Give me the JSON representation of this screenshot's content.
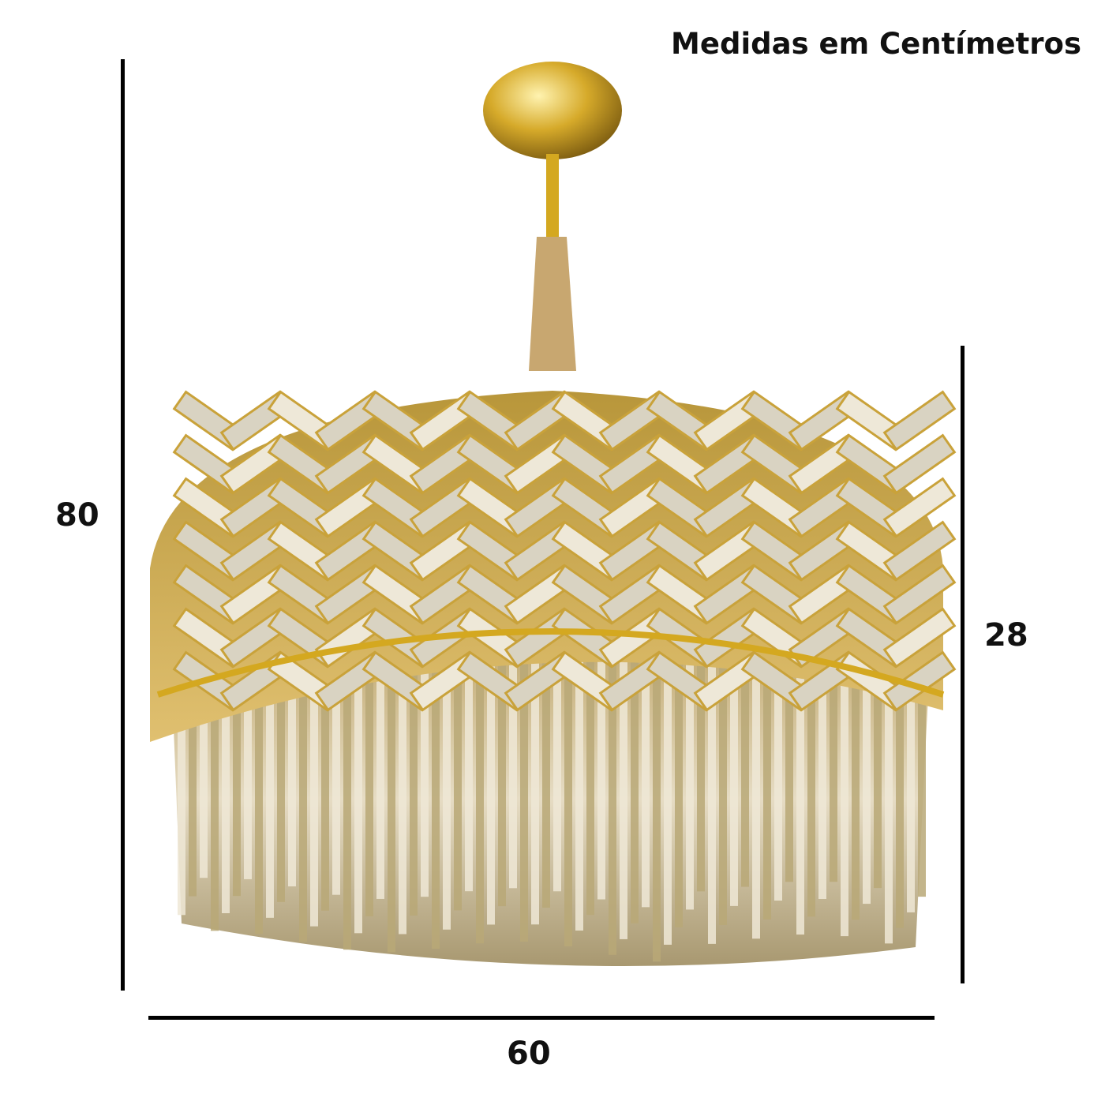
{
  "title": "Medidas em Centímetros",
  "dimensions": {
    "total_height": "80",
    "body_height": "28",
    "diameter": "60"
  },
  "colors": {
    "gold": "#c9a23a",
    "crystal": "#d8d2c0",
    "line": "#000000"
  }
}
